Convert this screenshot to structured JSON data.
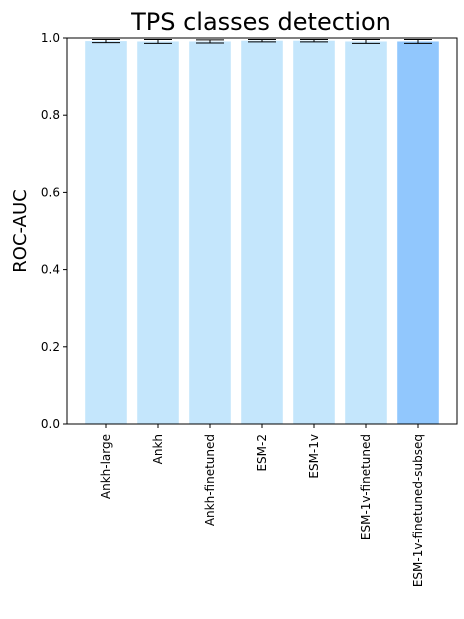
{
  "chart_data": {
    "type": "bar",
    "title": "TPS classes detection",
    "xlabel": "",
    "ylabel": "ROC-AUC",
    "ylim": [
      0,
      1.0
    ],
    "yticks": [
      "0.0",
      "0.2",
      "0.4",
      "0.6",
      "0.8",
      "1.0"
    ],
    "grid": false,
    "categories": [
      "Ankh-large",
      "Ankh",
      "Ankh-finetuned",
      "ESM-2",
      "ESM-1v",
      "ESM-1v-finetuned",
      "ESM-1v-finetuned-subseq"
    ],
    "values": [
      0.992,
      0.991,
      0.991,
      0.993,
      0.993,
      0.991,
      0.991
    ],
    "errors": [
      0.004,
      0.005,
      0.004,
      0.003,
      0.003,
      0.005,
      0.005
    ],
    "colors": [
      "#c4e6fc",
      "#c4e6fc",
      "#c4e6fc",
      "#c4e6fc",
      "#c4e6fc",
      "#c4e6fc",
      "#91c7fd"
    ]
  }
}
